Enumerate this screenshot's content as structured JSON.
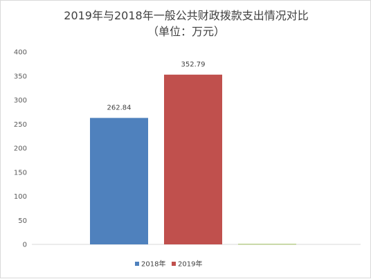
{
  "chart_data": {
    "type": "bar",
    "title": "2019年与2018年一般公共财政拨款支出情况对比",
    "subtitle": "（单位：万元）",
    "xlabel": "",
    "ylabel": "",
    "ylim": [
      0,
      400
    ],
    "yticks": [
      0,
      50,
      100,
      150,
      200,
      250,
      300,
      350,
      400
    ],
    "grid": false,
    "legend_position": "bottom",
    "series": [
      {
        "name": "2018年",
        "value": 262.84,
        "value_label": "262.84",
        "color": "#4f81bd"
      },
      {
        "name": "2019年",
        "value": 352.79,
        "value_label": "352.79",
        "color": "#c0504d"
      },
      {
        "name": "",
        "value": 1,
        "value_label": "",
        "color": "#9bbb59"
      }
    ]
  }
}
